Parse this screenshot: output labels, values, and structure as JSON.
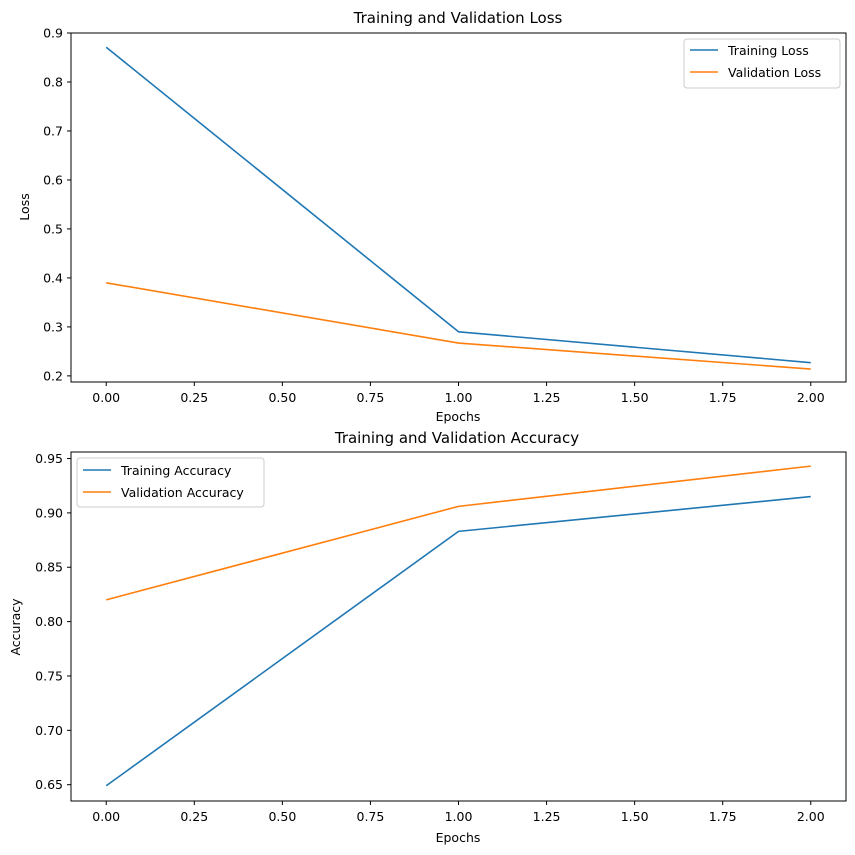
{
  "chart_data": [
    {
      "type": "line",
      "title": "Training and Validation Loss",
      "xlabel": "Epochs",
      "ylabel": "Loss",
      "x": [
        0,
        1,
        2
      ],
      "xlim": [
        -0.1,
        2.1
      ],
      "ylim": [
        0.1875,
        0.9
      ],
      "xticks": [
        "0.00",
        "0.25",
        "0.50",
        "0.75",
        "1.00",
        "1.25",
        "1.50",
        "1.75",
        "2.00"
      ],
      "yticks": [
        "0.2",
        "0.3",
        "0.4",
        "0.5",
        "0.6",
        "0.7",
        "0.8",
        "0.9"
      ],
      "series": [
        {
          "name": "Training Loss",
          "values": [
            0.871,
            0.29,
            0.227
          ],
          "color": "#1f77b4"
        },
        {
          "name": "Validation Loss",
          "values": [
            0.39,
            0.267,
            0.214
          ],
          "color": "#ff7f0e"
        }
      ],
      "legend": "top-right",
      "grid": false
    },
    {
      "type": "line",
      "title": "Training and Validation Accuracy",
      "xlabel": "Epochs",
      "ylabel": "Accuracy",
      "x": [
        0,
        1,
        2
      ],
      "xlim": [
        -0.1,
        2.1
      ],
      "ylim": [
        0.635,
        0.956
      ],
      "xticks": [
        "0.00",
        "0.25",
        "0.50",
        "0.75",
        "1.00",
        "1.25",
        "1.50",
        "1.75",
        "2.00"
      ],
      "yticks": [
        "0.65",
        "0.70",
        "0.75",
        "0.80",
        "0.85",
        "0.90",
        "0.95"
      ],
      "series": [
        {
          "name": "Training Accuracy",
          "values": [
            0.649,
            0.883,
            0.915
          ],
          "color": "#1f77b4"
        },
        {
          "name": "Validation Accuracy",
          "values": [
            0.82,
            0.906,
            0.943
          ],
          "color": "#ff7f0e"
        }
      ],
      "legend": "top-left",
      "grid": false
    }
  ]
}
